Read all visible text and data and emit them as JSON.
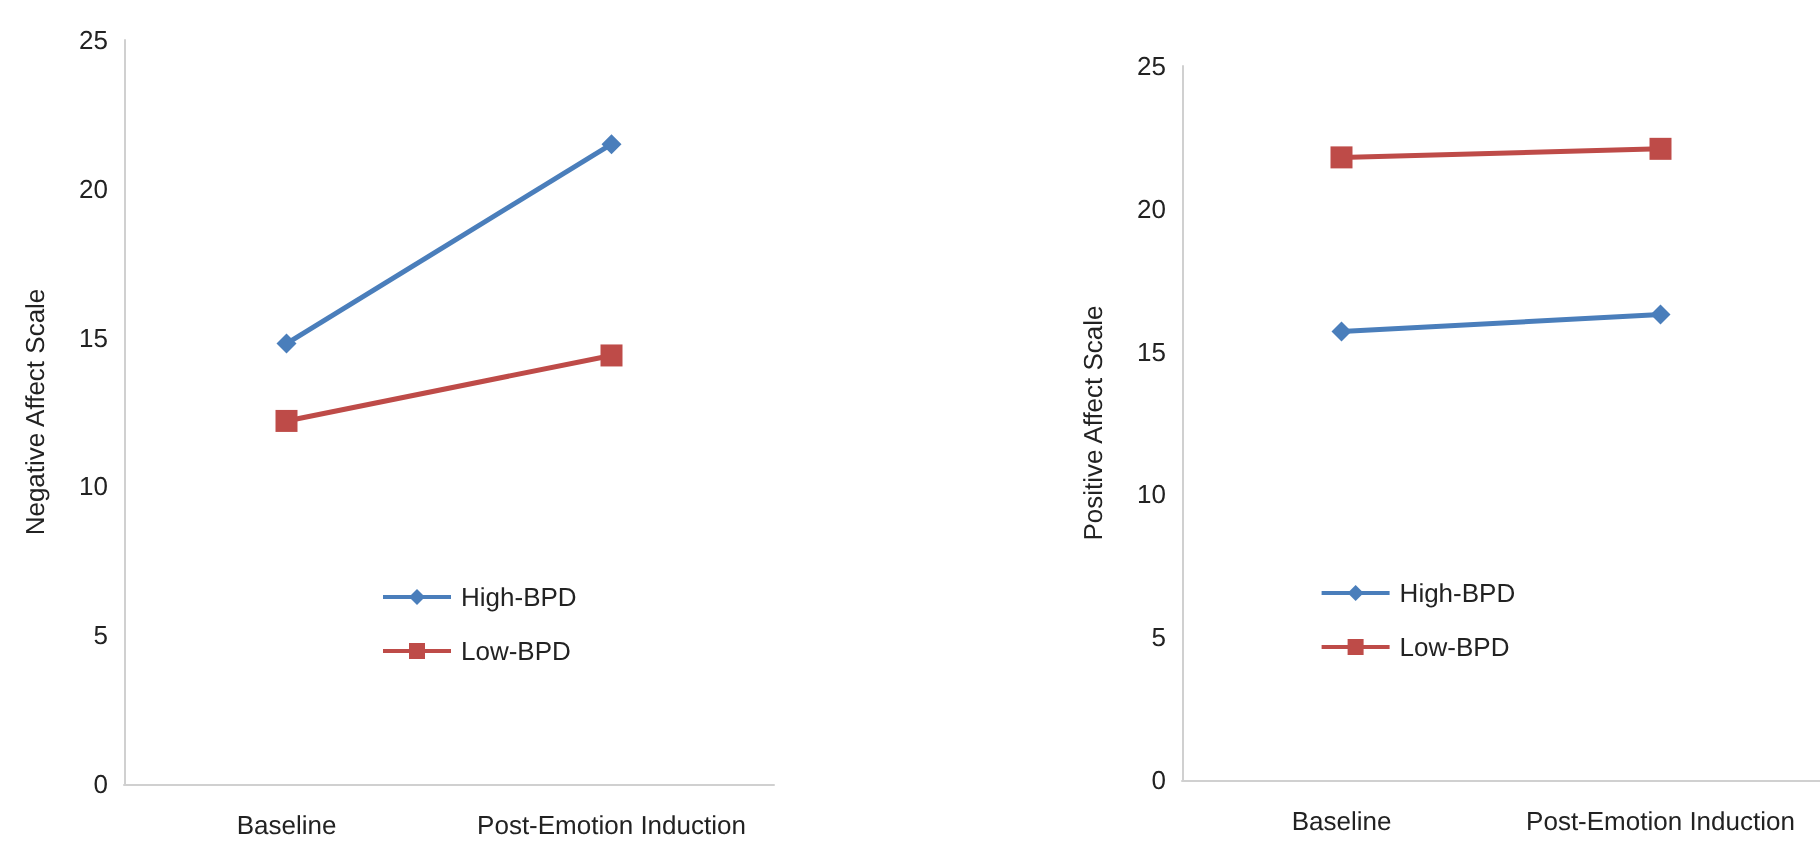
{
  "chart_data": [
    {
      "type": "line",
      "ylabel": "Negative Affect Scale",
      "categories": [
        "Baseline",
        "Post-Emotion Induction"
      ],
      "series": [
        {
          "name": "High-BPD",
          "color": "#4a7ebb",
          "values": [
            14.8,
            21.5
          ],
          "marker": "diamond"
        },
        {
          "name": "Low-BPD",
          "color": "#be4b48",
          "values": [
            12.2,
            14.4
          ],
          "marker": "square"
        }
      ],
      "ylim": [
        0,
        25
      ],
      "yticks": [
        0,
        5,
        10,
        15,
        20,
        25
      ],
      "legend": "bottom",
      "grid": false
    },
    {
      "type": "line",
      "ylabel": "Positive Affect Scale",
      "categories": [
        "Baseline",
        "Post-Emotion Induction"
      ],
      "series": [
        {
          "name": "High-BPD",
          "color": "#4a7ebb",
          "values": [
            15.7,
            16.3
          ],
          "marker": "diamond"
        },
        {
          "name": "Low-BPD",
          "color": "#be4b48",
          "values": [
            21.8,
            22.1
          ],
          "marker": "square"
        }
      ],
      "ylim": [
        0,
        25
      ],
      "yticks": [
        0,
        5,
        10,
        15,
        20,
        25
      ],
      "legend": "bottom left",
      "grid": false
    }
  ]
}
